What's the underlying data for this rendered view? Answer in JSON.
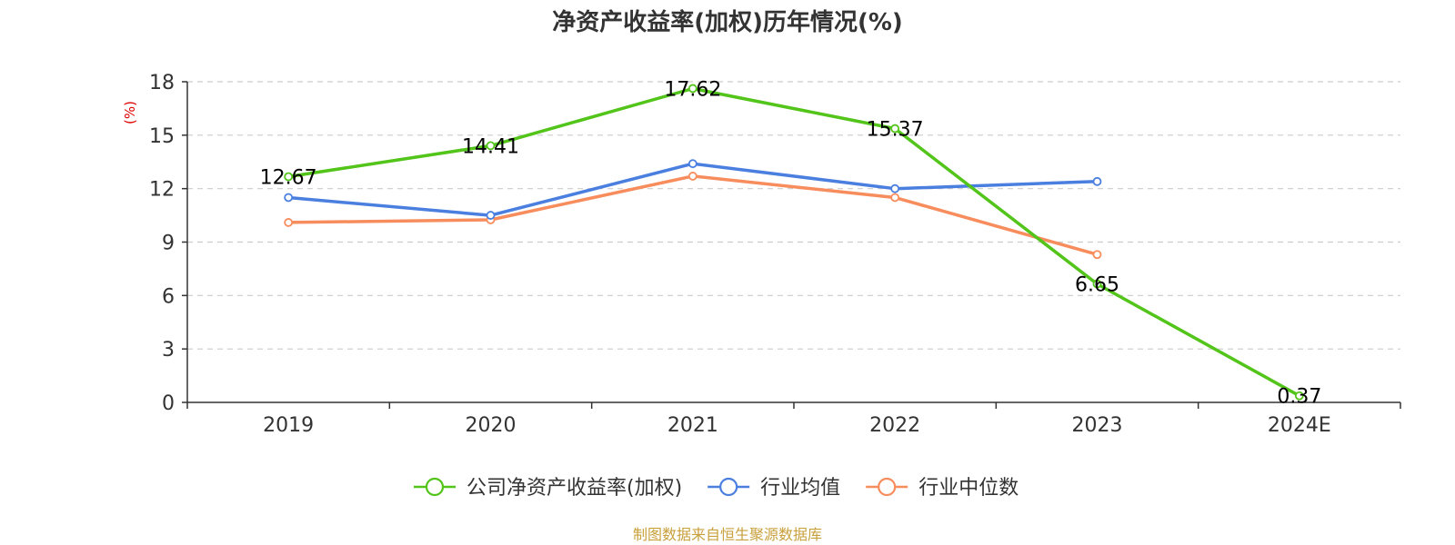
{
  "chart_data": {
    "type": "line",
    "title": "净资产收益率(加权)历年情况(%)",
    "ylabel": "(%)",
    "categories": [
      "2019",
      "2020",
      "2021",
      "2022",
      "2023",
      "2024E"
    ],
    "ylim": [
      0,
      18
    ],
    "yticks": [
      0,
      3,
      6,
      9,
      12,
      15,
      18
    ],
    "grid": true,
    "legend_position": "bottom",
    "series": [
      {
        "name": "公司净资产收益率(加权)",
        "color": "#52c41a",
        "values": [
          12.67,
          14.41,
          17.62,
          15.37,
          6.65,
          0.37
        ],
        "show_labels": true
      },
      {
        "name": "行业均值",
        "color": "#4a7fe0",
        "values": [
          11.5,
          10.5,
          13.4,
          12.0,
          12.4,
          null
        ],
        "show_labels": false
      },
      {
        "name": "行业中位数",
        "color": "#f78c5c",
        "values": [
          10.1,
          10.25,
          12.7,
          11.5,
          8.3,
          null
        ],
        "show_labels": false
      }
    ]
  },
  "colors": {
    "ylabel": "#e00000",
    "source": "#c8a03c",
    "axis": "#333333",
    "grid": "#cccccc"
  },
  "source_text": "制图数据来自恒生聚源数据库"
}
